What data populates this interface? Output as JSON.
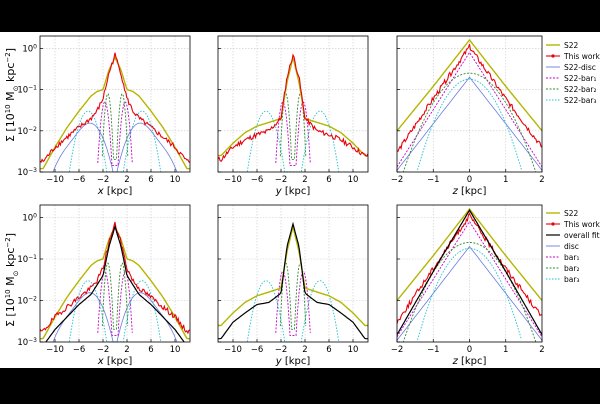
{
  "figure": {
    "ylabel_main": "Σ [10",
    "ylabel_exp": "10",
    "ylabel_mid": " M",
    "ylabel_sun": "⊙",
    "ylabel_unit": " kpc",
    "ylabel_unit_exp": "−2",
    "ylabel_close": "]"
  },
  "axes_text": {
    "x": "x",
    "y": "y",
    "z": "z",
    "unit": "[kpc]"
  },
  "legends": {
    "top": [
      "S22",
      "This work",
      "S22-disc",
      "S22-bar₁",
      "S22-bar₂",
      "S22-bar₃"
    ],
    "bottom": [
      "S22",
      "This work",
      "overall fit",
      "disc",
      "bar₁",
      "bar₂",
      "bar₃"
    ]
  },
  "colors": {
    "s22": "#b5b500",
    "this_work": "#e8000b",
    "overall": "#000000",
    "disc": "#6b7dde",
    "bar1": "#c800c8",
    "bar2": "#2e8b2e",
    "bar3": "#20c0d0"
  },
  "chart_data": [
    {
      "panel": "top-x",
      "type": "line",
      "xlabel": "x [kpc]",
      "yscale": "log",
      "ylim": [
        0.001,
        2
      ],
      "xlim": [
        -12.5,
        12.5
      ],
      "xticks": [
        -10,
        -6,
        -2,
        2,
        6,
        10
      ],
      "yticks": [
        "10⁰",
        "10⁻¹",
        "10⁻²",
        "10⁻³"
      ],
      "series": [
        {
          "name": "S22",
          "x": [
            -12,
            -10,
            -8,
            -6,
            -4,
            -3,
            -2,
            -1,
            0,
            1,
            2,
            3,
            4,
            6,
            8,
            10,
            12
          ],
          "values": [
            0.0012,
            0.004,
            0.012,
            0.03,
            0.07,
            0.09,
            0.1,
            0.3,
            0.6,
            0.3,
            0.1,
            0.09,
            0.07,
            0.03,
            0.012,
            0.004,
            0.0012
          ]
        },
        {
          "name": "This work",
          "x": [
            -12,
            -10,
            -8,
            -6,
            -4,
            -3,
            -2,
            -1,
            0,
            1,
            2,
            3,
            4,
            6,
            8,
            10,
            12
          ],
          "values": [
            0.0018,
            0.004,
            0.007,
            0.012,
            0.02,
            0.03,
            0.06,
            0.25,
            0.7,
            0.25,
            0.06,
            0.03,
            0.02,
            0.012,
            0.007,
            0.004,
            0.0018
          ]
        },
        {
          "name": "S22-disc",
          "x": [
            -12,
            -10,
            -8,
            -6,
            -4,
            -2,
            0,
            2,
            4,
            6,
            8,
            10,
            12
          ],
          "values": [
            0.0008,
            0.002,
            0.005,
            0.01,
            0.014,
            0.01,
            0.004,
            0.01,
            0.014,
            0.01,
            0.005,
            0.002,
            0.0008
          ]
        }
      ]
    },
    {
      "panel": "top-y",
      "type": "line",
      "xlabel": "y [kpc]",
      "yscale": "log",
      "ylim": [
        0.001,
        2
      ],
      "xlim": [
        -12.5,
        12.5
      ],
      "xticks": [
        -10,
        -6,
        -2,
        2,
        6,
        10
      ],
      "series": [
        {
          "name": "S22",
          "x": [
            -12,
            -10,
            -8,
            -6,
            -4,
            -2,
            -1,
            0,
            1,
            2,
            4,
            6,
            8,
            10,
            12
          ],
          "values": [
            0.0025,
            0.005,
            0.009,
            0.013,
            0.016,
            0.02,
            0.15,
            0.6,
            0.15,
            0.02,
            0.016,
            0.013,
            0.009,
            0.005,
            0.0025
          ]
        },
        {
          "name": "This work",
          "x": [
            -12,
            -10,
            -8,
            -6,
            -4,
            -2,
            -1,
            0,
            1,
            2,
            4,
            6,
            8,
            10,
            12
          ],
          "values": [
            0.002,
            0.004,
            0.006,
            0.008,
            0.01,
            0.02,
            0.2,
            0.7,
            0.2,
            0.02,
            0.01,
            0.008,
            0.006,
            0.004,
            0.0025
          ]
        }
      ]
    },
    {
      "panel": "top-z",
      "type": "line",
      "xlabel": "z [kpc]",
      "yscale": "log",
      "ylim": [
        0.001,
        2
      ],
      "xlim": [
        -2,
        2
      ],
      "xticks": [
        -2,
        -1,
        0,
        1,
        2
      ],
      "series": [
        {
          "name": "S22",
          "x": [
            -2,
            -1,
            0,
            1,
            2
          ],
          "values": [
            0.01,
            0.12,
            1.6,
            0.12,
            0.01
          ]
        },
        {
          "name": "This work",
          "x": [
            -2,
            -1,
            0,
            1,
            2
          ],
          "values": [
            0.003,
            0.06,
            1.1,
            0.06,
            0.004
          ]
        },
        {
          "name": "S22-disc",
          "x": [
            -2,
            -1,
            0,
            1,
            2
          ],
          "values": [
            0.0012,
            0.02,
            0.2,
            0.02,
            0.0012
          ]
        }
      ]
    },
    {
      "panel": "bottom-x",
      "type": "line",
      "xlabel": "x [kpc]",
      "yscale": "log",
      "ylim": [
        0.001,
        2
      ],
      "xlim": [
        -12.5,
        12.5
      ],
      "xticks": [
        -10,
        -6,
        -2,
        2,
        6,
        10
      ],
      "series": [
        {
          "name": "S22",
          "x": [
            -12,
            -10,
            -8,
            -6,
            -4,
            -3,
            -2,
            -1,
            0,
            1,
            2,
            3,
            4,
            6,
            8,
            10,
            12
          ],
          "values": [
            0.0012,
            0.004,
            0.012,
            0.03,
            0.07,
            0.09,
            0.1,
            0.3,
            0.6,
            0.3,
            0.1,
            0.09,
            0.07,
            0.03,
            0.012,
            0.004,
            0.0012
          ]
        },
        {
          "name": "This work",
          "x": [
            -12,
            -10,
            -8,
            -6,
            -4,
            -3,
            -2,
            -1,
            0,
            1,
            2,
            3,
            4,
            6,
            8,
            10,
            12
          ],
          "values": [
            0.0018,
            0.004,
            0.007,
            0.012,
            0.02,
            0.03,
            0.06,
            0.25,
            0.7,
            0.25,
            0.06,
            0.03,
            0.02,
            0.012,
            0.007,
            0.004,
            0.0018
          ]
        },
        {
          "name": "overall fit",
          "x": [
            -12,
            -10,
            -8,
            -6,
            -4,
            -2,
            -1,
            0,
            1,
            2,
            4,
            6,
            8,
            10,
            12
          ],
          "values": [
            0.0008,
            0.002,
            0.004,
            0.008,
            0.014,
            0.04,
            0.2,
            0.6,
            0.2,
            0.04,
            0.014,
            0.008,
            0.004,
            0.002,
            0.0008
          ]
        }
      ]
    },
    {
      "panel": "bottom-y",
      "type": "line",
      "xlabel": "y [kpc]",
      "yscale": "log",
      "ylim": [
        0.001,
        2
      ],
      "xlim": [
        -12.5,
        12.5
      ],
      "xticks": [
        -10,
        -6,
        -2,
        2,
        6,
        10
      ],
      "series": [
        {
          "name": "S22",
          "x": [
            -12,
            -10,
            -8,
            -6,
            -4,
            -2,
            -1,
            0,
            1,
            2,
            4,
            6,
            8,
            10,
            12
          ],
          "values": [
            0.0025,
            0.005,
            0.009,
            0.013,
            0.016,
            0.02,
            0.15,
            0.6,
            0.15,
            0.02,
            0.016,
            0.013,
            0.009,
            0.005,
            0.0025
          ]
        },
        {
          "name": "overall fit",
          "x": [
            -12,
            -10,
            -8,
            -6,
            -4,
            -2,
            -1,
            0,
            1,
            2,
            4,
            6,
            8,
            10,
            12
          ],
          "values": [
            0.0012,
            0.003,
            0.005,
            0.008,
            0.009,
            0.015,
            0.2,
            0.7,
            0.2,
            0.015,
            0.009,
            0.008,
            0.005,
            0.003,
            0.0012
          ]
        }
      ]
    },
    {
      "panel": "bottom-z",
      "type": "line",
      "xlabel": "z [kpc]",
      "yscale": "log",
      "ylim": [
        0.001,
        2
      ],
      "xlim": [
        -2,
        2
      ],
      "xticks": [
        -2,
        -1,
        0,
        1,
        2
      ],
      "series": [
        {
          "name": "S22",
          "x": [
            -2,
            -1,
            0,
            1,
            2
          ],
          "values": [
            0.01,
            0.12,
            1.6,
            0.12,
            0.01
          ]
        },
        {
          "name": "This work",
          "x": [
            -2,
            -1,
            0,
            1,
            2
          ],
          "values": [
            0.003,
            0.06,
            1.1,
            0.06,
            0.004
          ]
        },
        {
          "name": "overall fit",
          "x": [
            -2,
            -1,
            0,
            1,
            2
          ],
          "values": [
            0.0015,
            0.05,
            1.5,
            0.05,
            0.0015
          ]
        },
        {
          "name": "disc",
          "x": [
            -2,
            -1,
            0,
            1,
            2
          ],
          "values": [
            0.0012,
            0.015,
            0.18,
            0.015,
            0.0012
          ]
        }
      ]
    }
  ]
}
